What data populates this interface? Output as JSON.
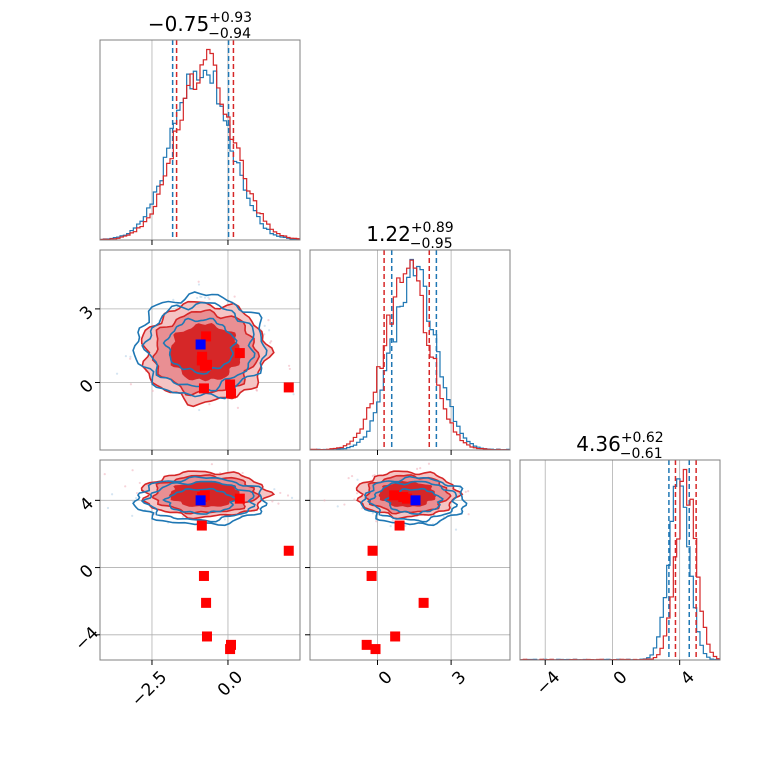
{
  "chart_data": {
    "type": "corner",
    "grid": true,
    "colors": {
      "red": "#d62728",
      "blue": "#1f77b4",
      "truth": "#0000ff",
      "points": "#ff0000"
    },
    "params": [
      {
        "title": {
          "value": "−0.75",
          "plus": "+0.93",
          "minus": "−0.94"
        },
        "range": [
          -4.21,
          2.37
        ],
        "ticks": [
          -2.5,
          0.0
        ],
        "tick_labels": [
          "−2.5",
          "0.0"
        ]
      },
      {
        "title": {
          "value": "1.22",
          "plus": "+0.89",
          "minus": "−0.95"
        },
        "range": [
          -2.75,
          5.4
        ],
        "ticks": [
          0,
          3
        ],
        "tick_labels": [
          "0",
          "3"
        ]
      },
      {
        "title": {
          "value": "4.36",
          "plus": "+0.62",
          "minus": "−0.61"
        },
        "range": [
          -5.5,
          6.4
        ],
        "ticks": [
          -4,
          0,
          4
        ],
        "tick_labels": [
          "−4",
          "0",
          "4"
        ]
      }
    ],
    "distributions": {
      "red": [
        {
          "mean": -0.75,
          "sigma": 0.93
        },
        {
          "mean": 1.22,
          "sigma": 0.92
        },
        {
          "mean": 4.36,
          "sigma": 0.61
        }
      ],
      "blue": [
        {
          "mean": -0.9,
          "sigma": 0.92
        },
        {
          "mean": 1.5,
          "sigma": 0.9
        },
        {
          "mean": 3.95,
          "sigma": 0.6
        }
      ]
    },
    "quantiles": {
      "red": [
        [
          -1.69,
          0.18
        ],
        [
          0.27,
          2.11
        ],
        [
          3.75,
          4.98
        ]
      ],
      "blue": [
        [
          -1.82,
          0.02
        ],
        [
          0.58,
          2.4
        ],
        [
          3.36,
          4.57
        ]
      ]
    },
    "truth": [
      -0.9,
      1.55,
      4.0
    ],
    "points": [
      [
        -0.86,
        0.9,
        2.5
      ],
      [
        2.0,
        -0.2,
        1.0
      ],
      [
        -0.79,
        -0.24,
        -0.5
      ],
      [
        -0.72,
        1.88,
        -2.1
      ],
      [
        -0.69,
        0.72,
        -4.1
      ],
      [
        0.1,
        -0.44,
        -4.6
      ],
      [
        0.07,
        -0.08,
        -4.85
      ],
      [
        -0.76,
        0.68,
        4.3
      ],
      [
        0.39,
        1.2,
        4.1
      ],
      [
        -0.85,
        1.05,
        4.2
      ]
    ]
  }
}
